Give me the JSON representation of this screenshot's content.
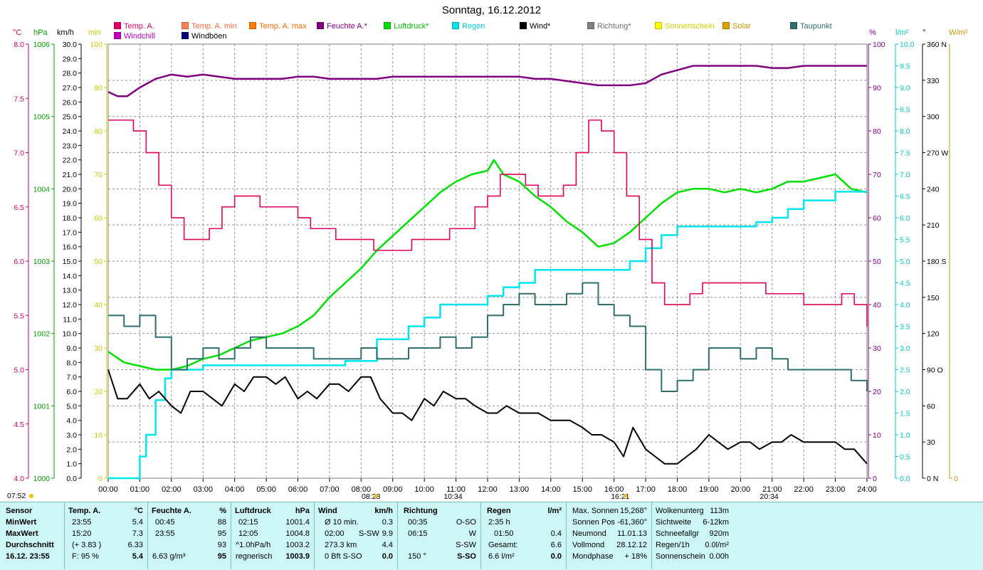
{
  "chart_data": {
    "type": "line",
    "title": "Sonntag, 16.12.2012",
    "x_ticks": [
      "00:00",
      "01:00",
      "02:00",
      "03:00",
      "04:00",
      "05:00",
      "06:00",
      "07:00",
      "08:00",
      "09:00",
      "10:00",
      "11:00",
      "12:00",
      "13:00",
      "14:00",
      "15:00",
      "16:00",
      "17:00",
      "18:00",
      "19:00",
      "20:00",
      "21:00",
      "22:00",
      "23:00",
      "24:00"
    ],
    "x_range_hours": [
      0,
      24
    ],
    "legend": [
      {
        "label": "Temp. A.",
        "color": "#e0006a"
      },
      {
        "label": "Temp. A. min",
        "color": "#ff7f50"
      },
      {
        "label": "Temp. A. max",
        "color": "#ff8000"
      },
      {
        "label": "Feuchte A.*",
        "color": "#800080"
      },
      {
        "label": "Luftdruck*",
        "color": "#00e000"
      },
      {
        "label": "Regen",
        "color": "#00e5ee"
      },
      {
        "label": "Wind*",
        "color": "#000000"
      },
      {
        "label": "Richtung*",
        "color": "#808080"
      },
      {
        "label": "Sonnenschein",
        "color": "#ffff00"
      },
      {
        "label": "Solar",
        "color": "#e0a000"
      },
      {
        "label": "Taupunkt",
        "color": "#2f6f6f"
      },
      {
        "label": "Windchill",
        "color": "#c000c0"
      },
      {
        "label": "Windböen",
        "color": "#000080"
      }
    ],
    "axes_left": [
      {
        "unit": "°C",
        "color": "#d0006a",
        "min": 4.0,
        "max": 8.0,
        "ticks": [
          "8.0",
          "7.5",
          "7.0",
          "6.5",
          "6.0",
          "5.5",
          "5.0",
          "4.5",
          "4.0"
        ]
      },
      {
        "unit": "hPa",
        "color": "#00a000",
        "min": 1000,
        "max": 1006,
        "ticks": [
          "1006",
          "1005",
          "1004",
          "1003",
          "1002",
          "1001",
          "1000"
        ]
      },
      {
        "unit": "km/h",
        "color": "#000000",
        "min": 0,
        "max": 30,
        "ticks": [
          "30.0",
          "29.0",
          "28.0",
          "27.0",
          "26.0",
          "25.0",
          "24.0",
          "23.0",
          "22.0",
          "21.0",
          "20.0",
          "19.0",
          "18.0",
          "17.0",
          "16.0",
          "15.0",
          "14.0",
          "13.0",
          "12.0",
          "11.0",
          "10.0",
          "9.0",
          "8.0",
          "7.0",
          "6.0",
          "5.0",
          "4.0",
          "3.0",
          "2.0",
          "1.0",
          "0.0"
        ]
      },
      {
        "unit": "min",
        "color": "#c8c800",
        "min": 0,
        "max": 100,
        "ticks": [
          "100",
          "90",
          "80",
          "70",
          "60",
          "50",
          "40",
          "30",
          "20",
          "10",
          "0"
        ]
      }
    ],
    "axes_right": [
      {
        "unit": "%",
        "color": "#800080",
        "min": 0,
        "max": 100,
        "ticks": [
          "100",
          "90",
          "80",
          "70",
          "60",
          "50",
          "40",
          "30",
          "20",
          "10",
          "0"
        ]
      },
      {
        "unit": "l/m²",
        "color": "#00c8c8",
        "min": 0,
        "max": 10,
        "ticks": [
          "10.0",
          "9.5",
          "9.0",
          "8.5",
          "8.0",
          "7.5",
          "7.0",
          "6.5",
          "6.0",
          "5.5",
          "5.0",
          "4.5",
          "4.0",
          "3.5",
          "3.0",
          "2.5",
          "2.0",
          "1.5",
          "1.0",
          "0.5",
          "0.0"
        ]
      },
      {
        "unit": "°",
        "color": "#000000",
        "min": 0,
        "max": 360,
        "ticks": [
          "360 N",
          "330",
          "300",
          "270 W",
          "240",
          "210",
          "180 S",
          "150",
          "120",
          "90 O",
          "60",
          "30",
          "0 N"
        ]
      },
      {
        "unit": "W/m²",
        "color": "#c89600",
        "min": 0,
        "max": 0,
        "ticks": [
          "0"
        ]
      }
    ],
    "sun_marks": {
      "sunrise": "07:52",
      "sunrise_pos": "08:28",
      "noon": "10:34",
      "sunset_pos": "16:21",
      "moon": "20:34"
    },
    "series": [
      {
        "name": "Feuchte A.*",
        "axis": "%",
        "x": [
          0,
          0.3,
          0.6,
          1,
          1.5,
          2,
          2.5,
          3,
          3.5,
          4,
          4.5,
          5,
          5.5,
          6,
          6.5,
          7,
          7.5,
          8,
          8.5,
          9,
          9.5,
          10,
          10.5,
          11,
          11.5,
          12,
          12.5,
          13,
          13.5,
          14,
          14.5,
          15,
          15.5,
          16,
          16.5,
          17,
          17.5,
          18,
          18.5,
          19,
          19.5,
          20,
          20.5,
          21,
          21.5,
          22,
          22.5,
          23,
          23.5,
          24
        ],
        "y": [
          89,
          88,
          88,
          90,
          92,
          93,
          92.5,
          93,
          92.5,
          92,
          92,
          92,
          92,
          92.5,
          92.5,
          92,
          92,
          92,
          92,
          92.5,
          92.5,
          92.5,
          92.5,
          92.5,
          92.5,
          92.5,
          92.5,
          92.5,
          92,
          92,
          91.5,
          91,
          90.5,
          90.5,
          90.5,
          91,
          93,
          94,
          95,
          95,
          95,
          95,
          95,
          94.5,
          94.5,
          95,
          95,
          95,
          95,
          95
        ]
      },
      {
        "name": "Luftdruck*",
        "axis": "hPa",
        "x": [
          0,
          0.5,
          1,
          1.5,
          2,
          2.5,
          3,
          3.5,
          4,
          4.5,
          5,
          5.5,
          6,
          6.5,
          7,
          7.5,
          8,
          8.5,
          9,
          9.5,
          10,
          10.5,
          11,
          11.5,
          12,
          12.2,
          12.5,
          13,
          13.5,
          14,
          14.5,
          15,
          15.5,
          16,
          16.5,
          17,
          17.5,
          18,
          18.5,
          19,
          19.5,
          20,
          20.5,
          21,
          21.5,
          22,
          22.5,
          23,
          23.5,
          24
        ],
        "y": [
          1001.75,
          1001.6,
          1001.55,
          1001.5,
          1001.5,
          1001.55,
          1001.65,
          1001.7,
          1001.8,
          1001.9,
          1001.95,
          1002.0,
          1002.1,
          1002.25,
          1002.5,
          1002.7,
          1002.9,
          1003.15,
          1003.35,
          1003.55,
          1003.75,
          1003.95,
          1004.1,
          1004.2,
          1004.25,
          1004.4,
          1004.2,
          1004.1,
          1003.9,
          1003.75,
          1003.55,
          1003.4,
          1003.2,
          1003.25,
          1003.4,
          1003.6,
          1003.8,
          1003.95,
          1004.0,
          1004.0,
          1003.95,
          1004.0,
          1003.95,
          1004.0,
          1004.1,
          1004.1,
          1004.15,
          1004.2,
          1004.0,
          1003.95
        ]
      },
      {
        "name": "Regen",
        "axis": "l/m²",
        "x": [
          0,
          0.8,
          1,
          1.2,
          1.5,
          1.8,
          2,
          2.3,
          3,
          3.5,
          4,
          5,
          6,
          7,
          7.5,
          8,
          8.5,
          9,
          9.5,
          10,
          10.5,
          11,
          11.5,
          12,
          12.5,
          13,
          13.5,
          14,
          15,
          16,
          16.5,
          17,
          17.5,
          18,
          19,
          20,
          20.5,
          21,
          21.5,
          22,
          23,
          24
        ],
        "y": [
          0,
          0,
          0.5,
          1.0,
          1.8,
          2.3,
          2.5,
          2.5,
          2.6,
          2.6,
          2.6,
          2.6,
          2.6,
          2.6,
          2.7,
          2.7,
          3.2,
          3.2,
          3.5,
          3.7,
          4.0,
          4.0,
          4.0,
          4.2,
          4.4,
          4.5,
          4.8,
          4.8,
          4.8,
          4.8,
          5.0,
          5.3,
          5.6,
          5.8,
          5.8,
          5.8,
          5.9,
          6.0,
          6.2,
          6.4,
          6.6,
          6.6
        ]
      },
      {
        "name": "Wind*",
        "axis": "km/h",
        "x": [
          0,
          0.3,
          0.6,
          1,
          1.3,
          1.6,
          2,
          2.3,
          2.6,
          3,
          3.3,
          3.6,
          4,
          4.3,
          4.6,
          5,
          5.3,
          5.6,
          6,
          6.3,
          6.6,
          7,
          7.3,
          7.6,
          8,
          8.3,
          8.6,
          9,
          9.3,
          9.6,
          10,
          10.3,
          10.6,
          11,
          11.3,
          11.6,
          12,
          12.3,
          12.6,
          13,
          13.3,
          13.6,
          14,
          14.3,
          14.6,
          15,
          15.3,
          15.6,
          16,
          16.3,
          16.6,
          17,
          17.3,
          17.6,
          18,
          18.3,
          18.6,
          19,
          19.3,
          19.6,
          20,
          20.3,
          20.6,
          21,
          21.3,
          21.6,
          22,
          22.3,
          22.6,
          23,
          23.3,
          23.6,
          24
        ],
        "y": [
          7.5,
          5.5,
          5.5,
          6.5,
          5.5,
          6.0,
          5.0,
          4.5,
          6.0,
          6.0,
          5.5,
          5.0,
          6.5,
          6.0,
          7.0,
          7.0,
          6.5,
          7.0,
          5.5,
          6.0,
          5.5,
          6.5,
          6.5,
          6.0,
          7.0,
          7.0,
          5.5,
          4.5,
          4.5,
          4.0,
          5.5,
          5.0,
          6.0,
          5.5,
          5.5,
          5.0,
          4.5,
          4.5,
          5.0,
          4.5,
          4.5,
          4.5,
          4.0,
          4.0,
          4.0,
          3.5,
          3.0,
          3.0,
          2.5,
          1.5,
          3.5,
          2.0,
          1.5,
          1.0,
          1.0,
          1.5,
          2.0,
          3.0,
          2.5,
          2.0,
          2.5,
          2.5,
          2.0,
          2.5,
          2.5,
          3.0,
          2.5,
          2.5,
          2.5,
          2.5,
          2.0,
          2.0,
          1.0
        ]
      },
      {
        "name": "Temp. A.",
        "axis": "°C",
        "x": [
          0,
          0.4,
          0.8,
          1.2,
          1.6,
          2.0,
          2.4,
          2.8,
          3.2,
          3.6,
          4.0,
          4.4,
          4.8,
          5.2,
          5.6,
          6.0,
          6.4,
          6.8,
          7.2,
          7.6,
          8.0,
          8.4,
          8.8,
          9.2,
          9.6,
          10.0,
          10.4,
          10.8,
          11.2,
          11.6,
          12.0,
          12.4,
          12.8,
          13.2,
          13.6,
          14.0,
          14.4,
          14.8,
          15.2,
          15.6,
          16.0,
          16.4,
          16.8,
          17.2,
          17.6,
          18.0,
          18.4,
          18.8,
          19.2,
          19.6,
          20.0,
          20.4,
          20.8,
          21.2,
          21.6,
          22.0,
          22.4,
          22.8,
          23.2,
          23.6,
          24
        ],
        "y": [
          7.3,
          7.3,
          7.2,
          7.0,
          6.7,
          6.4,
          6.2,
          6.2,
          6.3,
          6.5,
          6.6,
          6.6,
          6.5,
          6.5,
          6.5,
          6.4,
          6.3,
          6.3,
          6.2,
          6.2,
          6.2,
          6.1,
          6.1,
          6.1,
          6.2,
          6.2,
          6.2,
          6.3,
          6.3,
          6.5,
          6.6,
          6.8,
          6.8,
          6.7,
          6.6,
          6.6,
          6.7,
          7.0,
          7.3,
          7.2,
          7.0,
          6.6,
          6.2,
          5.8,
          5.6,
          5.6,
          5.7,
          5.8,
          5.8,
          5.8,
          5.8,
          5.8,
          5.7,
          5.7,
          5.7,
          5.6,
          5.6,
          5.6,
          5.7,
          5.6,
          5.4
        ]
      },
      {
        "name": "Taupunkt",
        "axis": "°C",
        "x": [
          0,
          0.5,
          1,
          1.5,
          2,
          2.5,
          3,
          3.5,
          4,
          4.5,
          5,
          5.5,
          6,
          6.5,
          7,
          7.5,
          8,
          8.5,
          9,
          9.5,
          10,
          10.5,
          11,
          11.5,
          12,
          12.5,
          13,
          13.5,
          14,
          14.5,
          15,
          15.5,
          16,
          16.5,
          17,
          17.5,
          18,
          18.5,
          19,
          19.5,
          20,
          20.5,
          21,
          21.5,
          22,
          22.5,
          23,
          23.5,
          24
        ],
        "y": [
          5.5,
          5.4,
          5.5,
          5.3,
          5.0,
          5.1,
          5.2,
          5.1,
          5.2,
          5.3,
          5.2,
          5.2,
          5.2,
          5.1,
          5.1,
          5.1,
          5.2,
          5.1,
          5.1,
          5.2,
          5.2,
          5.3,
          5.2,
          5.3,
          5.5,
          5.6,
          5.7,
          5.6,
          5.6,
          5.7,
          5.8,
          5.6,
          5.5,
          5.4,
          5.0,
          4.8,
          4.9,
          5.0,
          5.2,
          5.2,
          5.1,
          5.2,
          5.1,
          5.0,
          5.0,
          5.0,
          5.0,
          4.9,
          4.8
        ]
      }
    ]
  },
  "stats": {
    "sensor": {
      "header": "Sensor",
      "min": "MinWert",
      "max": "MaxWert",
      "avg": "Durchschnitt",
      "date": "16.12. 23:55"
    },
    "temp": {
      "header": "Temp. A.",
      "unit": "°C",
      "min_time": "23:55",
      "min_val": "5.4",
      "max_time": "15:20",
      "max_val": "7.3",
      "avg_note": "(+ 3.83 )",
      "avg_val": "6.33",
      "f_note": "F: 95 %",
      "current": "5.4"
    },
    "feuchte": {
      "header": "Feuchte A.",
      "unit": "%",
      "min_time": "00:45",
      "min_val": "88",
      "max_time": "23:55",
      "max_val": "95",
      "avg_val": "93",
      "abs": "6.63 g/m³",
      "current": "95"
    },
    "luftdruck": {
      "header": "Luftdruck",
      "unit": "hPa",
      "min_time": "02:15",
      "min_val": "1001.4",
      "max_time": "12:05",
      "max_val": "1004.8",
      "trend": "^1.0hPa/h",
      "avg_val": "1003.2",
      "forecast": "regnerisch",
      "current": "1003.9"
    },
    "wind": {
      "header": "Wind",
      "unit": "km/h",
      "r1_label": "Ø 10 min.",
      "r1_val": "0.3",
      "r2_time": "02:00",
      "r2_dir": "S-SW",
      "r2_val": "9.9",
      "r3_label": "273.3 km",
      "r3_val": "4.4",
      "r4_label": "0 Bft S-SO",
      "current": "0.0"
    },
    "richtung": {
      "header": "Richtung",
      "r1_time": "00:35",
      "r1_val": "O-SO",
      "r2_time": "06:15",
      "r2_val": "W",
      "r3_val": "S-SW",
      "deg": "150 °",
      "current": "S-SO"
    },
    "regen": {
      "header": "Regen",
      "unit": "l/m²",
      "r1": "2:35 h",
      "r2_time": "01:50",
      "r2_val": "0.4",
      "r3_label": "Gesamt:",
      "r3_val": "6.6",
      "r4": "6.6 l/m²",
      "current": "0.0"
    },
    "sun": {
      "l1": "Max. Sonnen",
      "v1": "15,268°",
      "l2": "Sonnen Pos",
      "v2": "-61,360°",
      "l3": "Neumond",
      "v3": "11.01.13",
      "l4": "Vollmond",
      "v4": "28.12.12",
      "l5": "Mondphase",
      "v5": "+ 18%"
    },
    "misc": {
      "l1": "Wolkenunterg",
      "v1": "113m",
      "l2": "Sichtweite",
      "v2": "6-12km",
      "l3": "Schneefallgr",
      "v3": "920m",
      "l4": "Regen/1h",
      "v4": "0.0l/m²",
      "l5": "Sonnenschein",
      "v5": "0.00h"
    }
  }
}
